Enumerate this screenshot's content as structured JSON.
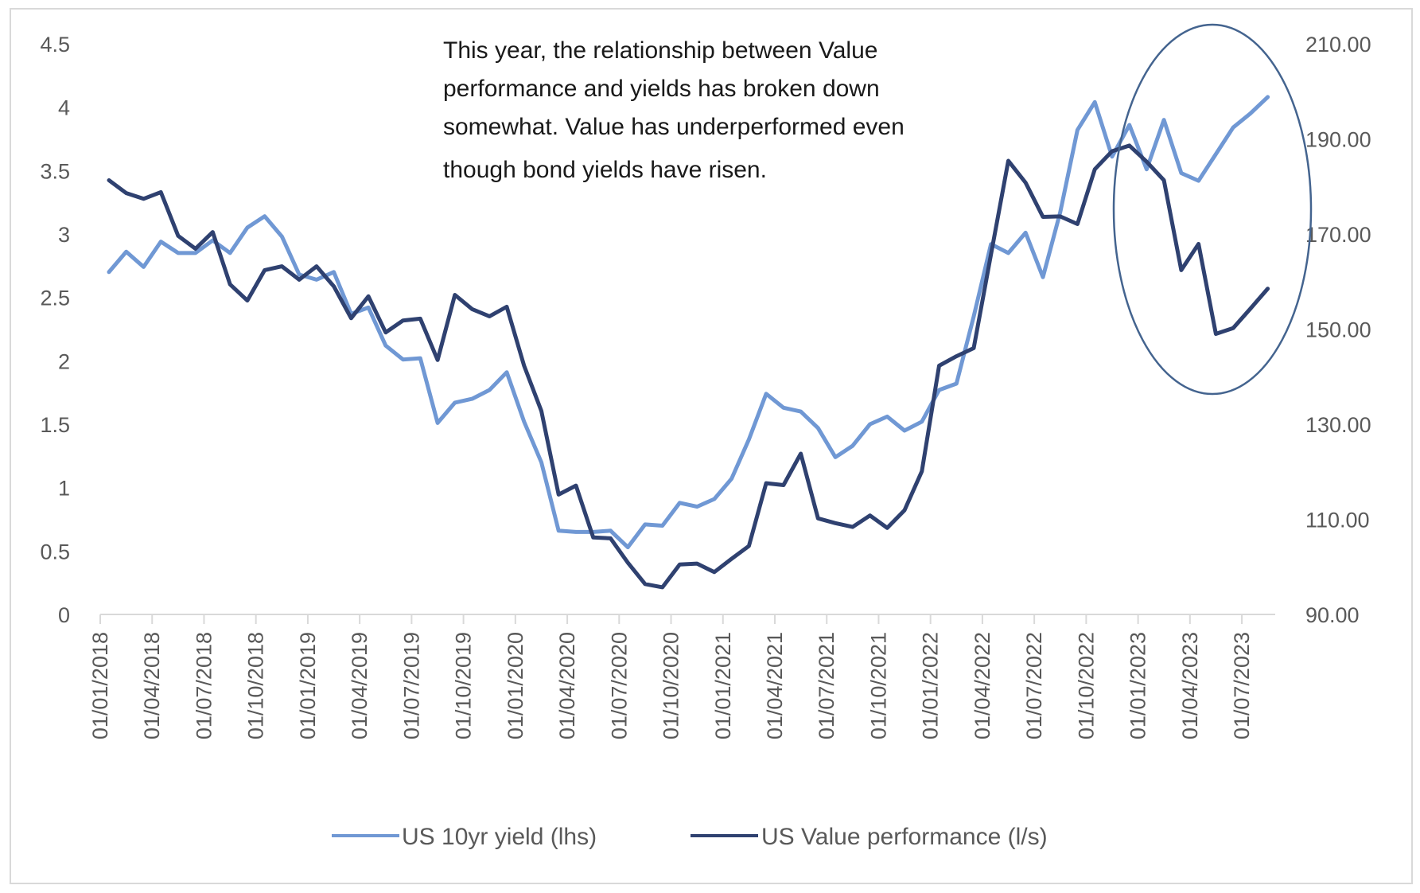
{
  "chart_data": {
    "type": "line",
    "title": "",
    "xlabel": "",
    "ylabel_left": "",
    "ylabel_right": "",
    "grid": false,
    "legend_position": "bottom",
    "x_tick_labels": [
      "01/01/2018",
      "01/04/2018",
      "01/07/2018",
      "01/10/2018",
      "01/01/2019",
      "01/04/2019",
      "01/07/2019",
      "01/10/2019",
      "01/01/2020",
      "01/04/2020",
      "01/07/2020",
      "01/10/2020",
      "01/01/2021",
      "01/04/2021",
      "01/07/2021",
      "01/10/2021",
      "01/01/2022",
      "01/04/2022",
      "01/07/2022",
      "01/10/2022",
      "01/01/2023",
      "01/04/2023",
      "01/07/2023"
    ],
    "x_start": "2018-01",
    "x_frequency": "monthly",
    "y_left": {
      "ylim": [
        0,
        4.5
      ],
      "ticks": [
        "0",
        "0.5",
        "1",
        "1.5",
        "2",
        "2.5",
        "3",
        "3.5",
        "4",
        "4.5"
      ],
      "tick_values": [
        0,
        0.5,
        1,
        1.5,
        2,
        2.5,
        3,
        3.5,
        4,
        4.5
      ]
    },
    "y_right": {
      "ylim": [
        90,
        210
      ],
      "ticks": [
        "90.00",
        "110.00",
        "130.00",
        "150.00",
        "170.00",
        "190.00",
        "210.00"
      ],
      "tick_values": [
        90,
        110,
        130,
        150,
        170,
        190,
        210
      ]
    },
    "series": [
      {
        "name": "US 10yr yield (lhs)",
        "axis": "left",
        "color": "#7098d4",
        "values": [
          2.7,
          2.86,
          2.74,
          2.94,
          2.85,
          2.85,
          2.95,
          2.85,
          3.05,
          3.14,
          2.98,
          2.68,
          2.64,
          2.7,
          2.37,
          2.42,
          2.12,
          2.01,
          2.02,
          1.51,
          1.67,
          1.7,
          1.77,
          1.91,
          1.52,
          1.2,
          0.66,
          0.65,
          0.65,
          0.66,
          0.53,
          0.71,
          0.7,
          0.88,
          0.85,
          0.91,
          1.07,
          1.38,
          1.74,
          1.63,
          1.6,
          1.47,
          1.24,
          1.33,
          1.5,
          1.56,
          1.45,
          1.52,
          1.77,
          1.82,
          2.35,
          2.92,
          2.85,
          3.01,
          2.66,
          3.17,
          3.82,
          4.04,
          3.61,
          3.86,
          3.51,
          3.9,
          3.48,
          3.42,
          3.63,
          3.84,
          3.95,
          4.08
        ]
      },
      {
        "name": "US Value performance (l/s)",
        "axis": "right",
        "color": "#2f4170",
        "values": [
          181.3,
          178.6,
          177.4,
          178.8,
          169.6,
          166.9,
          170.4,
          159.4,
          156.0,
          162.4,
          163.2,
          160.4,
          163.2,
          159.0,
          152.3,
          156.9,
          149.3,
          151.8,
          152.2,
          143.5,
          157.2,
          154.2,
          152.7,
          154.7,
          142.3,
          132.8,
          115.2,
          117.1,
          106.2,
          106.0,
          100.9,
          96.4,
          95.7,
          100.5,
          100.7,
          98.9,
          101.7,
          104.4,
          117.6,
          117.2,
          123.8,
          110.2,
          109.2,
          108.4,
          110.8,
          108.2,
          111.9,
          120.1,
          142.3,
          144.3,
          146.0,
          165.7,
          185.4,
          180.8,
          173.6,
          173.7,
          172.1,
          183.6,
          187.4,
          188.6,
          185.2,
          181.3,
          162.4,
          167.9,
          149.0,
          150.2,
          154.3,
          158.5
        ]
      }
    ],
    "annotations": [
      {
        "type": "text",
        "lines": [
          "This year, the relationship between Value",
          "performance and yields has broken down",
          "somewhat. Value has underperformed even",
          "though bond yields have risen."
        ]
      },
      {
        "type": "ellipse",
        "highlights": "2023 data",
        "color": "#44648f"
      }
    ]
  }
}
